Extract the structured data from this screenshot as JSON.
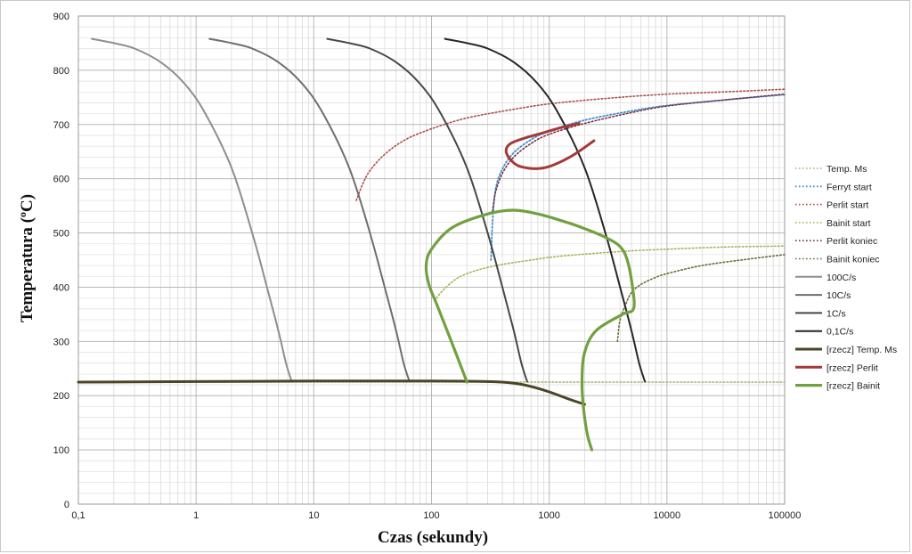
{
  "chart_data": {
    "type": "line",
    "title": "",
    "xlabel": "Czas (sekundy)",
    "ylabel_main": "Temperatura (",
    "ylabel_sup": "o",
    "ylabel_end": "C)",
    "x_scale": "log",
    "xlim": [
      0.1,
      100000
    ],
    "ylim": [
      0,
      900
    ],
    "x_ticks": [
      {
        "v": 0.1,
        "label": "0,1"
      },
      {
        "v": 1,
        "label": "1"
      },
      {
        "v": 10,
        "label": "10"
      },
      {
        "v": 100,
        "label": "100"
      },
      {
        "v": 1000,
        "label": "1000"
      },
      {
        "v": 10000,
        "label": "10000"
      },
      {
        "v": 100000,
        "label": "100000"
      }
    ],
    "y_ticks": [
      {
        "v": 0,
        "label": "0"
      },
      {
        "v": 100,
        "label": "100"
      },
      {
        "v": 200,
        "label": "200"
      },
      {
        "v": 300,
        "label": "300"
      },
      {
        "v": 400,
        "label": "400"
      },
      {
        "v": 500,
        "label": "500"
      },
      {
        "v": 600,
        "label": "600"
      },
      {
        "v": 700,
        "label": "700"
      },
      {
        "v": 800,
        "label": "800"
      },
      {
        "v": 900,
        "label": "900"
      }
    ],
    "grid": true,
    "legend_position": "right",
    "series": [
      {
        "name": "Temp. Ms",
        "color": "#a8b070",
        "style": "dotted",
        "width": 1.6,
        "x": [
          0.1,
          1,
          10,
          100,
          1000,
          10000,
          100000
        ],
        "y": [
          225,
          225,
          225,
          225,
          225,
          225,
          225
        ]
      },
      {
        "name": "Ferryt start",
        "color": "#3f8fcf",
        "style": "dotted",
        "width": 1.8,
        "x": [
          320,
          330,
          350,
          400,
          500,
          700,
          1000,
          2000,
          5000,
          10000,
          30000,
          100000
        ],
        "y": [
          450,
          520,
          580,
          618,
          648,
          672,
          688,
          708,
          725,
          735,
          745,
          755
        ]
      },
      {
        "name": "Perlit start",
        "color": "#b04a4a",
        "style": "dotted",
        "width": 1.6,
        "x": [
          23,
          26,
          30,
          40,
          60,
          100,
          200,
          500,
          1000,
          3000,
          10000,
          30000,
          100000
        ],
        "y": [
          560,
          590,
          615,
          645,
          672,
          692,
          712,
          728,
          738,
          748,
          756,
          760,
          765
        ]
      },
      {
        "name": "Bainit start",
        "color": "#a5b45a",
        "style": "dotted",
        "width": 1.6,
        "x": [
          110,
          130,
          170,
          250,
          400,
          700,
          1000,
          2000,
          5000,
          10000,
          30000,
          100000
        ],
        "y": [
          380,
          398,
          418,
          432,
          442,
          450,
          455,
          461,
          467,
          470,
          474,
          476
        ]
      },
      {
        "name": "Perlit koniec",
        "color": "#7a3040",
        "style": "dotted",
        "width": 1.6,
        "x": [
          330,
          350,
          400,
          500,
          700,
          1000,
          2000,
          5000,
          10000,
          30000,
          100000
        ],
        "y": [
          540,
          575,
          610,
          640,
          665,
          682,
          702,
          722,
          734,
          745,
          756
        ]
      },
      {
        "name": "Bainit koniec",
        "color": "#6a6a3a",
        "style": "dotted",
        "width": 1.6,
        "x": [
          3800,
          4000,
          4500,
          5000,
          6000,
          8000,
          10000,
          20000,
          50000,
          100000
        ],
        "y": [
          300,
          340,
          370,
          390,
          405,
          418,
          425,
          440,
          452,
          460
        ]
      },
      {
        "name": "100C/s",
        "color": "#8e8e8e",
        "style": "solid",
        "width": 2,
        "x": [
          0.13,
          0.2,
          0.3,
          0.5,
          0.8,
          1.2,
          2,
          3,
          4,
          5,
          5.8,
          6.5
        ],
        "y": [
          858,
          850,
          840,
          815,
          775,
          720,
          620,
          500,
          400,
          320,
          260,
          226
        ]
      },
      {
        "name": "10C/s",
        "color": "#6e6e6e",
        "style": "solid",
        "width": 2,
        "x": [
          1.3,
          2,
          3,
          5,
          8,
          12,
          20,
          30,
          40,
          50,
          58,
          65
        ],
        "y": [
          858,
          850,
          840,
          815,
          775,
          720,
          620,
          500,
          400,
          320,
          260,
          226
        ]
      },
      {
        "name": "1C/s",
        "color": "#474747",
        "style": "solid",
        "width": 2,
        "x": [
          13,
          20,
          30,
          50,
          80,
          120,
          200,
          300,
          400,
          500,
          580,
          650
        ],
        "y": [
          858,
          850,
          840,
          815,
          775,
          720,
          620,
          500,
          400,
          320,
          260,
          226
        ]
      },
      {
        "name": "0,1C/s",
        "color": "#262626",
        "style": "solid",
        "width": 2,
        "x": [
          130,
          200,
          300,
          500,
          800,
          1200,
          2000,
          3000,
          4000,
          5000,
          5800,
          6500
        ],
        "y": [
          858,
          850,
          840,
          815,
          775,
          720,
          620,
          500,
          400,
          320,
          260,
          226
        ]
      },
      {
        "name": "[rzecz] Temp. Ms",
        "color": "#4a4528",
        "style": "solid",
        "width": 3,
        "x": [
          0.1,
          1,
          10,
          100,
          300,
          500,
          700,
          1000,
          1500,
          2000
        ],
        "y": [
          225,
          226,
          227,
          227,
          226,
          223,
          217,
          207,
          193,
          184
        ]
      },
      {
        "name": "[rzecz] Perlit",
        "color": "#a33a3a",
        "style": "solid",
        "width": 3,
        "x": [
          2400,
          1500,
          900,
          580,
          470,
          430,
          470,
          620,
          900,
          1300,
          1800
        ],
        "y": [
          670,
          640,
          620,
          622,
          635,
          652,
          665,
          675,
          685,
          695,
          702
        ]
      },
      {
        "name": "[rzecz] Bainit",
        "color": "#72a040",
        "style": "solid",
        "width": 3.2,
        "x": [
          200,
          160,
          130,
          110,
          95,
          90,
          100,
          150,
          300,
          500,
          800,
          1300,
          2000,
          3000,
          4000,
          4600,
          5100,
          5200,
          4200,
          2500,
          2000,
          1900,
          1950,
          2100,
          2300
        ],
        "y": [
          225,
          280,
          330,
          370,
          405,
          440,
          470,
          510,
          535,
          542,
          535,
          522,
          508,
          492,
          475,
          450,
          400,
          360,
          350,
          320,
          280,
          230,
          180,
          130,
          100
        ]
      }
    ]
  }
}
